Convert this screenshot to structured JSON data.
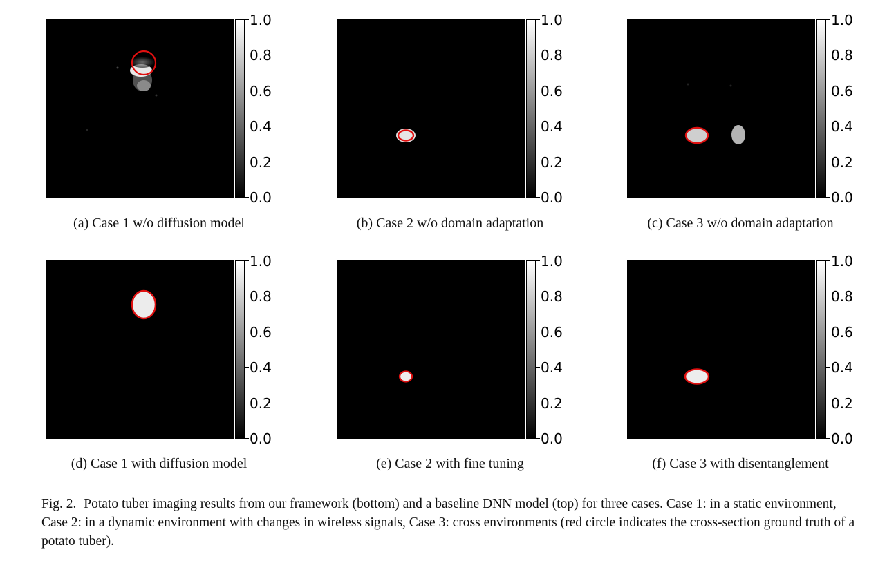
{
  "colorbar": {
    "ticks": [
      "1.0",
      "0.8",
      "0.6",
      "0.4",
      "0.2",
      "0.0"
    ]
  },
  "panels": [
    {
      "caption": "(a) Case 1 w/o diffusion model"
    },
    {
      "caption": "(b) Case 2 w/o domain adaptation"
    },
    {
      "caption": "(c) Case 3 w/o domain adaptation"
    },
    {
      "caption": "(d) Case 1 with diffusion model"
    },
    {
      "caption": "(e) Case 2 with fine tuning"
    },
    {
      "caption": "(f) Case 3 with disentanglement"
    }
  ],
  "figure_caption": {
    "label": "Fig. 2.",
    "text": "Potato tuber imaging results from our framework (bottom) and a baseline DNN model (top) for three cases. Case 1: in a static environment, Case 2: in a dynamic environment with changes in wireless signals, Case 3: cross environments (red circle indicates the cross-section ground truth of a potato tuber)."
  },
  "colors": {
    "ground_truth": "#e01010",
    "background": "#000000"
  }
}
